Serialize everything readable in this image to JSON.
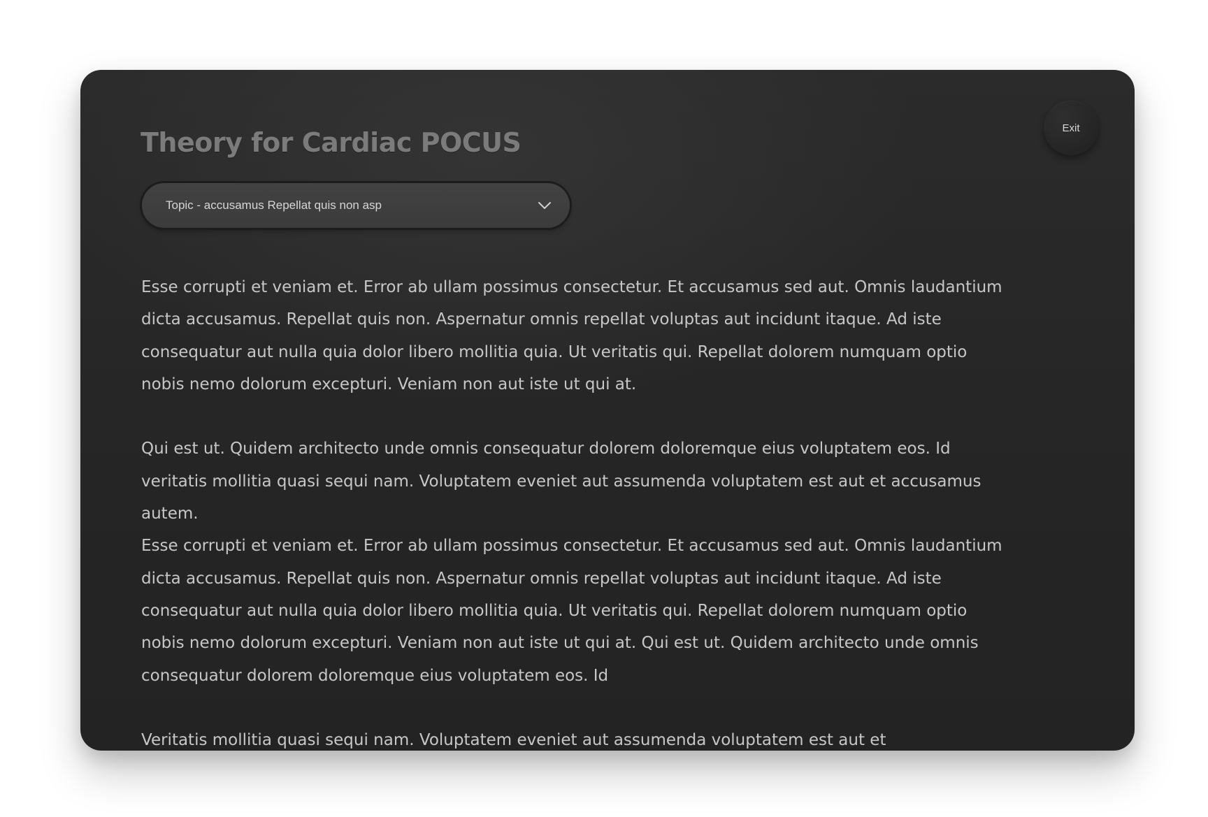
{
  "window": {
    "title": "Theory for Cardiac POCUS",
    "exit_label": "Exit"
  },
  "topic_select": {
    "selected": "Topic - accusamus Repellat quis non asp",
    "icon": "chevron-down-icon"
  },
  "paragraphs": [
    "Esse corrupti et veniam et. Error ab ullam possimus consectetur. Et accusamus sed aut. Omnis laudantium dicta accusamus. Repellat quis non. Aspernatur omnis repellat voluptas aut incidunt itaque. Ad iste consequatur aut nulla quia dolor libero mollitia quia. Ut veritatis qui. Repellat dolorem numquam optio nobis nemo dolorum excepturi. Veniam non aut iste ut qui at.",
    "Qui est ut. Quidem architecto unde omnis consequatur dolorem doloremque eius voluptatem eos. Id veritatis mollitia quasi sequi nam. Voluptatem eveniet aut assumenda voluptatem est aut et accusamus autem.",
    "Esse corrupti et veniam et. Error ab ullam possimus consectetur. Et accusamus sed aut. Omnis laudantium dicta accusamus. Repellat quis non. Aspernatur omnis repellat voluptas aut incidunt itaque. Ad iste consequatur aut nulla quia dolor libero mollitia quia. Ut veritatis qui. Repellat dolorem numquam optio nobis nemo dolorum excepturi. Veniam non aut iste ut qui at. Qui est ut. Quidem architecto unde omnis consequatur dolorem doloremque eius voluptatem eos. Id",
    "Veritatis mollitia quasi sequi nam. Voluptatem eveniet aut assumenda voluptatem est aut et"
  ],
  "colors": {
    "card_background": "#262626",
    "title_text": "#7b7b7b",
    "body_text": "#c7c7c7",
    "select_background": "#3f3f3f"
  }
}
